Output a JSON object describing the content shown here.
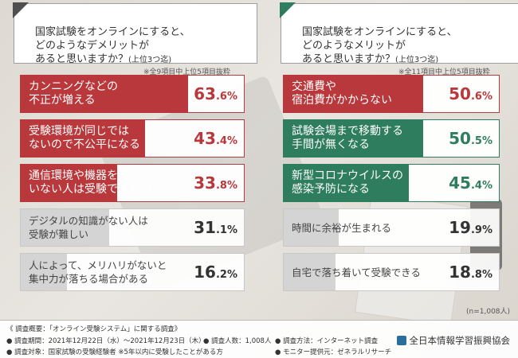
{
  "chart_data": [
    {
      "type": "bar",
      "title": "国家試験をオンラインにすると、\nどのようなデメリットが\nあると思いますか？",
      "title_note": "(上位3つ迄)",
      "subtitle": "※全9項目中上位5項目抜粋",
      "categories": [
        "カンニングなどの\n不正が増える",
        "受験環境が同じでは\nないので不公平になる",
        "通信環境や機器を持って\nいない人は受験できない",
        "デジタルの知識がない人は\n受験が難しい",
        "人によって、メリハリがないと\n集中力が落ちる場合がある"
      ],
      "values": [
        63.6,
        43.4,
        33.8,
        31.1,
        16.2
      ],
      "unit": "%",
      "ylim": [
        0,
        100
      ],
      "colors": [
        "#b8383c",
        "#b8383c",
        "#b8383c",
        "#d4d4d4",
        "#d4d4d4"
      ]
    },
    {
      "type": "bar",
      "title": "国家試験をオンラインにすると、\nどのようなメリットが\nあると思いますか？",
      "title_note": "(上位3つ迄)",
      "subtitle": "※全11項目中上位5項目抜粋",
      "categories": [
        "交通費や\n宿泊費がかからない",
        "試験会場まで移動する\n手間が無くなる",
        "新型コロナウイルスの\n感染予防になる",
        "時間に余裕が生まれる",
        "自宅で落ち着いて受験できる"
      ],
      "values": [
        50.6,
        50.5,
        45.4,
        19.9,
        18.8
      ],
      "unit": "%",
      "ylim": [
        0,
        100
      ],
      "colors": [
        "#b8383c",
        "#2e7d5e",
        "#2e7d5e",
        "#d4d4d4",
        "#d4d4d4"
      ]
    }
  ],
  "sample_note": "(n=1,008人)",
  "footer": {
    "heading": "《 調査概要：「オンライン受験システム」に関する調査》",
    "period": "● 調査期間：2021年12月22日（水）～2021年12月23日（木）",
    "count": "● 調査人数：1,008人",
    "method": "● 調査方法：インターネット調査",
    "target": "● 調査対象：国家試験の受験経験者 ※5年以内に受験したことがある方",
    "provider": "● モニター提供元：ゼネラルリサーチ",
    "org": "全日本情報学習振興協会"
  },
  "colors": {
    "dark_panel": "#4f4f4f",
    "panel_green": "#2e7d5e"
  }
}
